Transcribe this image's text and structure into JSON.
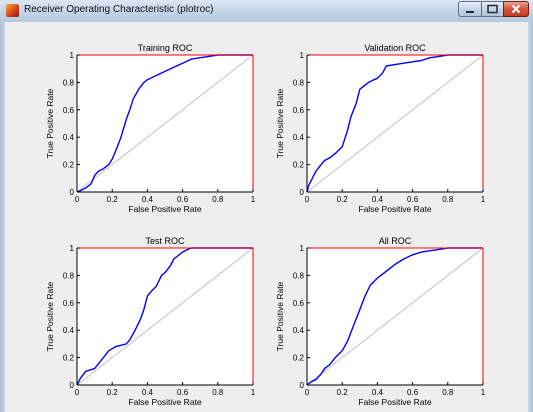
{
  "window": {
    "title": "Receiver Operating Characteristic (plotroc)",
    "controls": {
      "minimize": "minimize-icon",
      "maximize": "maximize-icon",
      "close": "close-icon"
    }
  },
  "colors": {
    "roc_curve": "#0000ff",
    "diagonal": "#c0c0c0",
    "axis_edge": "#ff0000",
    "background": "#eeeeee"
  },
  "chart_data": [
    {
      "type": "line",
      "title": "Training ROC",
      "xlabel": "False Positive Rate",
      "ylabel": "True Positive Rate",
      "xlim": [
        0,
        1
      ],
      "ylim": [
        0,
        1
      ],
      "xticks": [
        "0",
        "0.2",
        "0.4",
        "0.6",
        "0.8",
        "1"
      ],
      "yticks": [
        "0",
        "0.2",
        "0.4",
        "0.6",
        "0.8",
        "1"
      ],
      "series": [
        {
          "x": [
            0,
            0.02,
            0.05,
            0.08,
            0.1,
            0.12,
            0.15,
            0.18,
            0.2,
            0.22,
            0.25,
            0.28,
            0.3,
            0.32,
            0.35,
            0.38,
            0.4,
            0.45,
            0.5,
            0.55,
            0.6,
            0.65,
            0.7,
            0.75,
            0.8,
            1
          ],
          "y": [
            0,
            0.01,
            0.03,
            0.06,
            0.12,
            0.15,
            0.17,
            0.2,
            0.24,
            0.3,
            0.4,
            0.53,
            0.6,
            0.68,
            0.75,
            0.8,
            0.82,
            0.85,
            0.88,
            0.91,
            0.94,
            0.97,
            0.98,
            0.99,
            1,
            1
          ]
        }
      ]
    },
    {
      "type": "line",
      "title": "Validation ROC",
      "xlabel": "False Positive Rate",
      "ylabel": "True Positive Rate",
      "xlim": [
        0,
        1
      ],
      "ylim": [
        0,
        1
      ],
      "xticks": [
        "0",
        "0.2",
        "0.4",
        "0.6",
        "0.8",
        "1"
      ],
      "yticks": [
        "0",
        "0.2",
        "0.4",
        "0.6",
        "0.8",
        "1"
      ],
      "series": [
        {
          "x": [
            0,
            0.01,
            0.03,
            0.05,
            0.08,
            0.1,
            0.13,
            0.16,
            0.2,
            0.23,
            0.25,
            0.28,
            0.3,
            0.33,
            0.35,
            0.38,
            0.4,
            0.43,
            0.45,
            0.5,
            0.55,
            0.6,
            0.65,
            0.7,
            0.75,
            0.8,
            1
          ],
          "y": [
            0,
            0.05,
            0.1,
            0.15,
            0.2,
            0.23,
            0.25,
            0.28,
            0.33,
            0.45,
            0.55,
            0.65,
            0.75,
            0.78,
            0.8,
            0.82,
            0.83,
            0.87,
            0.92,
            0.93,
            0.94,
            0.95,
            0.96,
            0.98,
            0.99,
            1,
            1
          ]
        }
      ]
    },
    {
      "type": "line",
      "title": "Test ROC",
      "xlabel": "False Positive Rate",
      "ylabel": "True Positive Rate",
      "xlim": [
        0,
        1
      ],
      "ylim": [
        0,
        1
      ],
      "xticks": [
        "0",
        "0.2",
        "0.4",
        "0.6",
        "0.8",
        "1"
      ],
      "yticks": [
        "0",
        "0.2",
        "0.4",
        "0.6",
        "0.8",
        "1"
      ],
      "series": [
        {
          "x": [
            0,
            0.02,
            0.05,
            0.1,
            0.15,
            0.18,
            0.22,
            0.28,
            0.3,
            0.33,
            0.36,
            0.38,
            0.4,
            0.42,
            0.45,
            0.48,
            0.5,
            0.53,
            0.55,
            0.58,
            0.6,
            0.63,
            0.65,
            0.7,
            1
          ],
          "y": [
            0,
            0.05,
            0.1,
            0.12,
            0.2,
            0.25,
            0.28,
            0.3,
            0.33,
            0.4,
            0.48,
            0.55,
            0.65,
            0.68,
            0.72,
            0.8,
            0.82,
            0.87,
            0.92,
            0.95,
            0.97,
            0.99,
            1,
            1,
            1
          ]
        }
      ]
    },
    {
      "type": "line",
      "title": "All ROC",
      "xlabel": "False Positive Rate",
      "ylabel": "True Positive Rate",
      "xlim": [
        0,
        1
      ],
      "ylim": [
        0,
        1
      ],
      "xticks": [
        "0",
        "0.2",
        "0.4",
        "0.6",
        "0.8",
        "1"
      ],
      "yticks": [
        "0",
        "0.2",
        "0.4",
        "0.6",
        "0.8",
        "1"
      ],
      "series": [
        {
          "x": [
            0,
            0.02,
            0.05,
            0.08,
            0.1,
            0.13,
            0.16,
            0.2,
            0.23,
            0.26,
            0.3,
            0.33,
            0.36,
            0.4,
            0.45,
            0.5,
            0.55,
            0.6,
            0.65,
            0.7,
            0.75,
            0.8,
            1
          ],
          "y": [
            0,
            0.02,
            0.04,
            0.08,
            0.12,
            0.15,
            0.2,
            0.25,
            0.32,
            0.42,
            0.55,
            0.65,
            0.73,
            0.78,
            0.83,
            0.88,
            0.92,
            0.95,
            0.97,
            0.98,
            0.99,
            1,
            1
          ]
        }
      ]
    }
  ]
}
